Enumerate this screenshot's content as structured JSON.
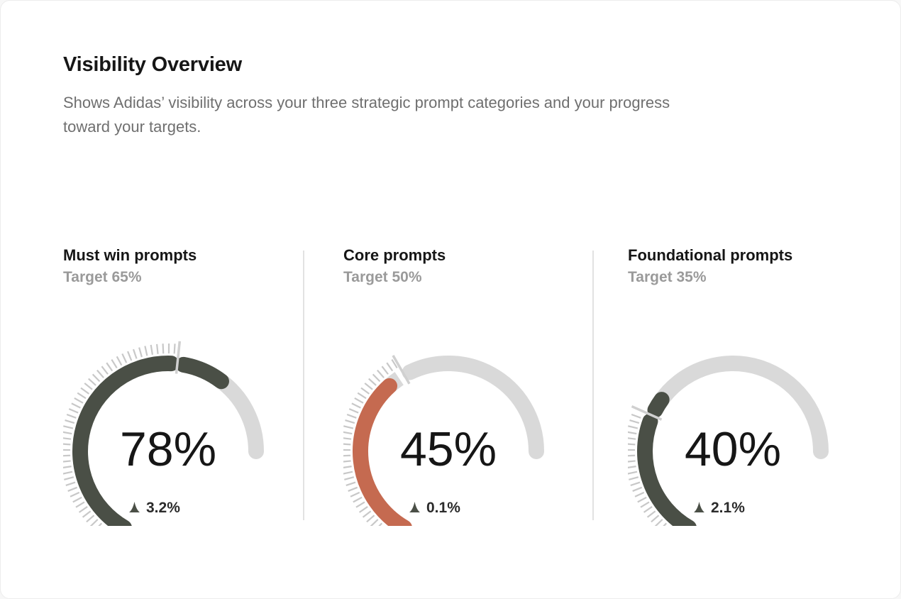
{
  "header": {
    "title": "Visibility Overview",
    "description": "Shows Adidas’ visibility across your three strategic prompt categories and your progress toward your targets."
  },
  "colors": {
    "track": "#d9d9d9",
    "ticks": "#c8c8c8",
    "on_track": "#4a4f46",
    "below_target": "#c56a50",
    "target_marker": "#d0d0d0",
    "delta_icon": "#4a4f46"
  },
  "chart_data": [
    {
      "type": "gauge",
      "title": "Must win prompts",
      "target_label": "Target 65%",
      "target": 65,
      "value": 78,
      "value_label": "78%",
      "delta_label": "3.2%",
      "delta_direction": "up",
      "status": "on_track"
    },
    {
      "type": "gauge",
      "title": "Core prompts",
      "target_label": "Target 50%",
      "target": 50,
      "value": 45,
      "value_label": "45%",
      "delta_label": "0.1%",
      "delta_direction": "up",
      "status": "below_target"
    },
    {
      "type": "gauge",
      "title": "Foundational prompts",
      "target_label": "Target 35%",
      "target": 35,
      "value": 40,
      "value_label": "40%",
      "delta_label": "2.1%",
      "delta_direction": "up",
      "status": "on_track"
    }
  ]
}
